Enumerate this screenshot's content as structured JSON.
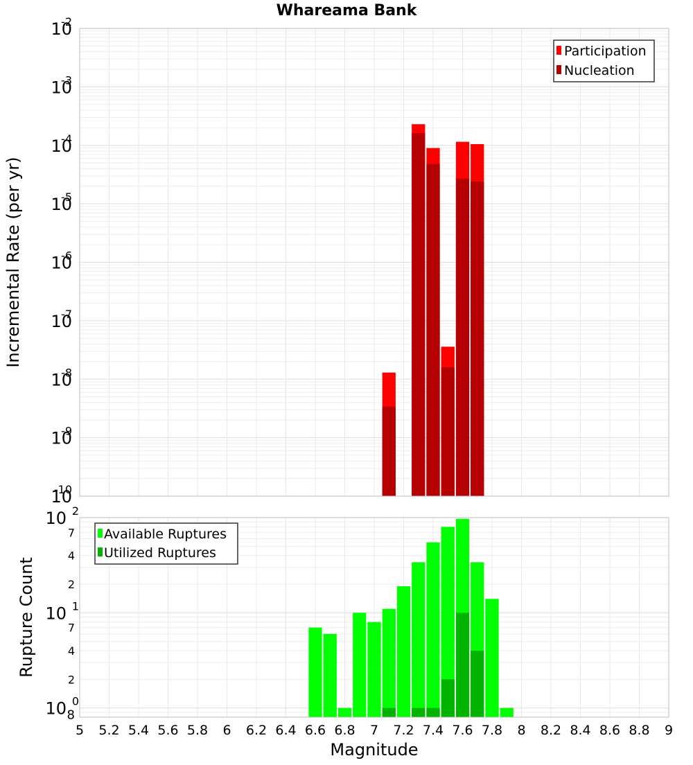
{
  "chart_data": [
    {
      "type": "bar",
      "title": "Whareama Bank",
      "xlabel": "",
      "ylabel": "Incremental Rate (per yr)",
      "yscale": "log",
      "ylim": [
        1e-10,
        0.01
      ],
      "xlim": [
        5,
        9
      ],
      "grid": true,
      "legend_position": "top-right",
      "y_tick_labels": [
        {
          "base": "10",
          "exp": "-10"
        },
        {
          "base": "10",
          "exp": "-9"
        },
        {
          "base": "10",
          "exp": "-8"
        },
        {
          "base": "10",
          "exp": "-7"
        },
        {
          "base": "10",
          "exp": "-6"
        },
        {
          "base": "10",
          "exp": "-5"
        },
        {
          "base": "10",
          "exp": "-4"
        },
        {
          "base": "10",
          "exp": "-3"
        },
        {
          "base": "10",
          "exp": "-2"
        }
      ],
      "x": [
        7.1,
        7.3,
        7.4,
        7.5,
        7.6,
        7.7
      ],
      "series": [
        {
          "name": "Participation",
          "color": "#ff0000",
          "values": [
            1.3e-08,
            0.00023,
            9e-05,
            3.6e-08,
            0.000115,
            0.000105
          ]
        },
        {
          "name": "Nucleation",
          "color": "#b40000",
          "values": [
            3.4e-09,
            0.00016,
            4.8e-05,
            1.6e-08,
            2.7e-05,
            2.4e-05
          ]
        }
      ]
    },
    {
      "type": "bar",
      "title": "",
      "xlabel": "Magnitude",
      "ylabel": "Rupture Count",
      "yscale": "log",
      "ylim": [
        0.8,
        100
      ],
      "xlim": [
        5,
        9
      ],
      "grid": true,
      "legend_position": "top-left",
      "y_tick_labels": [
        {
          "base": "10",
          "exp": "0",
          "minor": "8"
        },
        {
          "base": "",
          "exp": "",
          "minor": "2"
        },
        {
          "base": "",
          "exp": "",
          "minor": "4"
        },
        {
          "base": "",
          "exp": "",
          "minor": "7"
        },
        {
          "base": "10",
          "exp": "1",
          "minor": ""
        },
        {
          "base": "",
          "exp": "",
          "minor": "2"
        },
        {
          "base": "",
          "exp": "",
          "minor": "4"
        },
        {
          "base": "",
          "exp": "",
          "minor": "7"
        },
        {
          "base": "10",
          "exp": "2",
          "minor": ""
        }
      ],
      "x_ticks": [
        "5",
        "5.2",
        "5.4",
        "5.6",
        "5.8",
        "6",
        "6.2",
        "6.4",
        "6.6",
        "6.8",
        "7",
        "7.2",
        "7.4",
        "7.6",
        "7.8",
        "8",
        "8.2",
        "8.4",
        "8.6",
        "8.8",
        "9"
      ],
      "x": [
        6.6,
        6.7,
        6.8,
        6.9,
        7.0,
        7.1,
        7.2,
        7.3,
        7.4,
        7.5,
        7.6,
        7.7,
        7.8,
        7.9
      ],
      "series": [
        {
          "name": "Available Ruptures",
          "color": "#00ff00",
          "values": [
            7,
            6,
            1,
            10,
            8,
            11,
            19,
            34,
            55,
            80,
            97,
            34,
            14,
            1
          ]
        },
        {
          "name": "Utilized Ruptures",
          "color": "#00b400",
          "values": [
            0,
            0,
            0,
            0,
            0,
            1,
            0,
            1,
            1,
            2,
            10,
            4,
            0,
            0
          ]
        }
      ]
    }
  ]
}
